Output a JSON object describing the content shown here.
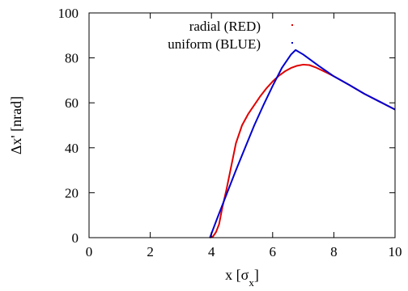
{
  "chart_data": {
    "type": "line",
    "xlabel": "x [σ",
    "xlabel_sub": "x",
    "xlabel_end": "]",
    "ylabel": "Δx' [nrad]",
    "xlim": [
      0,
      10
    ],
    "ylim": [
      0,
      100
    ],
    "xticks": [
      "0",
      "2",
      "4",
      "6",
      "8",
      "10"
    ],
    "yticks": [
      "0",
      "20",
      "40",
      "60",
      "80",
      "100"
    ],
    "grid": false,
    "legend_position": "top-right",
    "series": [
      {
        "name": "radial (RED)",
        "color": "#e00000",
        "x": [
          3.95,
          4.05,
          4.15,
          4.25,
          4.35,
          4.5,
          4.65,
          4.8,
          5.0,
          5.2,
          5.4,
          5.6,
          5.8,
          6.0,
          6.2,
          6.4,
          6.6,
          6.8,
          7.0,
          7.2,
          7.4,
          7.6,
          7.8,
          8.0,
          8.5,
          9.0,
          9.5,
          10.0
        ],
        "y": [
          0,
          0.5,
          2.5,
          6,
          13,
          22,
          32,
          42,
          50,
          55,
          59,
          63,
          66.5,
          69.5,
          72,
          74,
          75.5,
          76.5,
          77,
          76.8,
          75.8,
          74.5,
          73.2,
          71.8,
          68,
          64,
          60.5,
          57
        ]
      },
      {
        "name": "uniform (BLUE)",
        "color": "#0000d0",
        "x": [
          3.95,
          4.2,
          4.5,
          4.8,
          5.1,
          5.4,
          5.7,
          6.0,
          6.3,
          6.6,
          6.75,
          7.0,
          7.5,
          8.0,
          8.5,
          9.0,
          9.5,
          10.0
        ],
        "y": [
          0,
          9,
          19.5,
          30,
          40,
          50,
          59,
          67.5,
          75.5,
          81.5,
          83.5,
          81.5,
          76.5,
          71.8,
          68,
          64,
          60.5,
          57
        ]
      }
    ]
  }
}
